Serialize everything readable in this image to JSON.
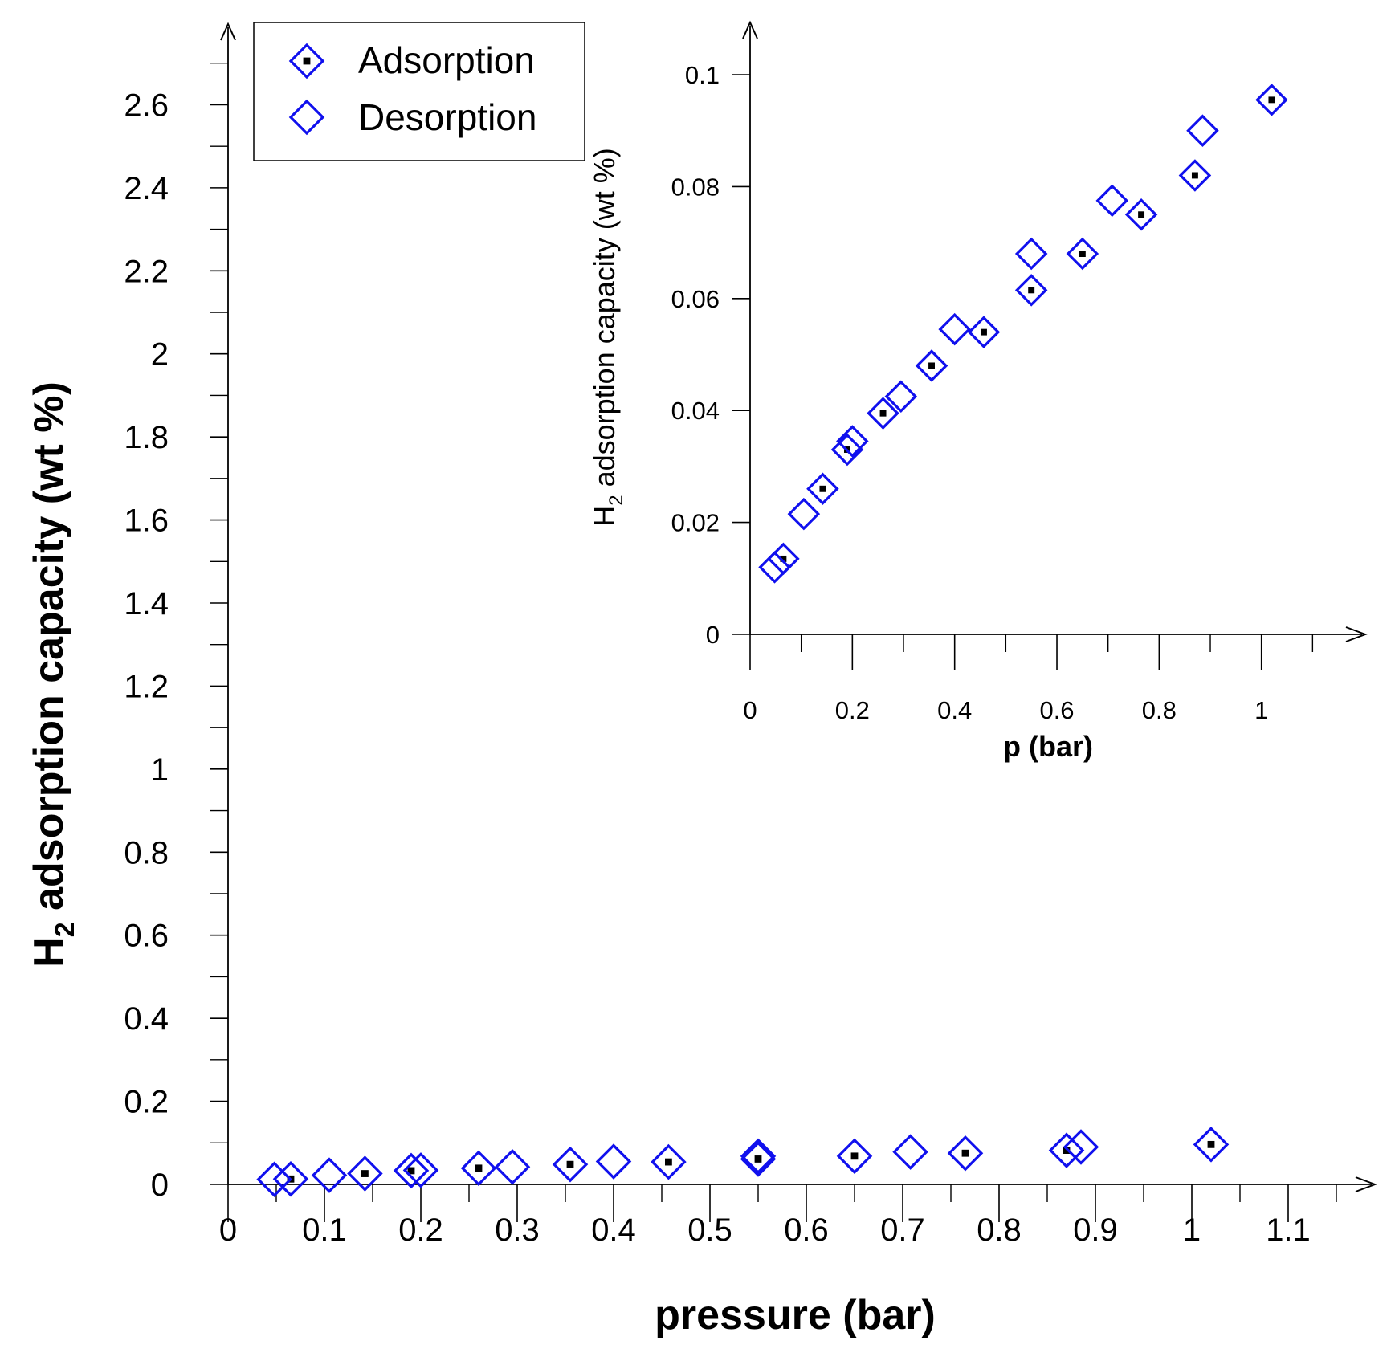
{
  "chart_data": [
    {
      "type": "scatter",
      "panel": "main",
      "title": "",
      "xlabel": "pressure (bar)",
      "ylabel": "H2 adsorption capacity (wt %)",
      "ylabel_main": "H",
      "ylabel_sub": "2",
      "ylabel_rest": " adsorption capacity (wt %)",
      "xlim": [
        0,
        1.2
      ],
      "ylim": [
        0,
        2.8
      ],
      "xticks": [
        "0",
        "0.1",
        "0.2",
        "0.3",
        "0.4",
        "0.5",
        "0.6",
        "0.7",
        "0.8",
        "0.9",
        "1",
        "1.1"
      ],
      "yticks": [
        "0",
        "0.2",
        "0.4",
        "0.6",
        "0.8",
        "1",
        "1.2",
        "1.4",
        "1.6",
        "1.8",
        "2",
        "2.2",
        "2.4",
        "2.6"
      ],
      "legend": {
        "placement": "top-left",
        "entries": [
          "Adsorption",
          "Desorption"
        ]
      },
      "series": [
        {
          "name": "Adsorption",
          "marker": "diamond-dot",
          "color": "#1010ee",
          "x": [
            0.065,
            0.142,
            0.19,
            0.26,
            0.355,
            0.457,
            0.55,
            0.65,
            0.765,
            0.87,
            1.02
          ],
          "y": [
            0.013,
            0.026,
            0.033,
            0.039,
            0.048,
            0.054,
            0.061,
            0.068,
            0.075,
            0.082,
            0.096
          ]
        },
        {
          "name": "Desorption",
          "marker": "diamond-open",
          "color": "#1010ee",
          "x": [
            0.048,
            0.105,
            0.2,
            0.295,
            0.4,
            0.55,
            0.708,
            0.885
          ],
          "y": [
            0.012,
            0.022,
            0.034,
            0.042,
            0.055,
            0.068,
            0.078,
            0.09
          ]
        }
      ]
    },
    {
      "type": "scatter",
      "panel": "inset",
      "title": "",
      "xlabel": "p (bar)",
      "ylabel": "H2 adsorption capacity (wt %)",
      "ylabel_main": "H",
      "ylabel_sub": "2",
      "ylabel_rest": " adsorption capacity (wt %)",
      "xlim": [
        0,
        1.2
      ],
      "ylim": [
        0,
        0.11
      ],
      "xticks": [
        "0",
        "0.2",
        "0.4",
        "0.6",
        "0.8",
        "1"
      ],
      "yticks": [
        "0",
        "0.02",
        "0.04",
        "0.06",
        "0.08",
        "0.1"
      ],
      "series": [
        {
          "name": "Adsorption",
          "marker": "diamond-dot",
          "color": "#1010ee",
          "x": [
            0.065,
            0.142,
            0.19,
            0.26,
            0.355,
            0.457,
            0.55,
            0.65,
            0.765,
            0.87,
            1.02
          ],
          "y": [
            0.0135,
            0.026,
            0.033,
            0.0395,
            0.048,
            0.054,
            0.0615,
            0.068,
            0.075,
            0.082,
            0.0955
          ]
        },
        {
          "name": "Desorption",
          "marker": "diamond-open",
          "color": "#1010ee",
          "x": [
            0.048,
            0.105,
            0.2,
            0.295,
            0.4,
            0.55,
            0.708,
            0.885
          ],
          "y": [
            0.012,
            0.0215,
            0.0345,
            0.0425,
            0.0545,
            0.068,
            0.0775,
            0.09
          ]
        }
      ]
    }
  ]
}
